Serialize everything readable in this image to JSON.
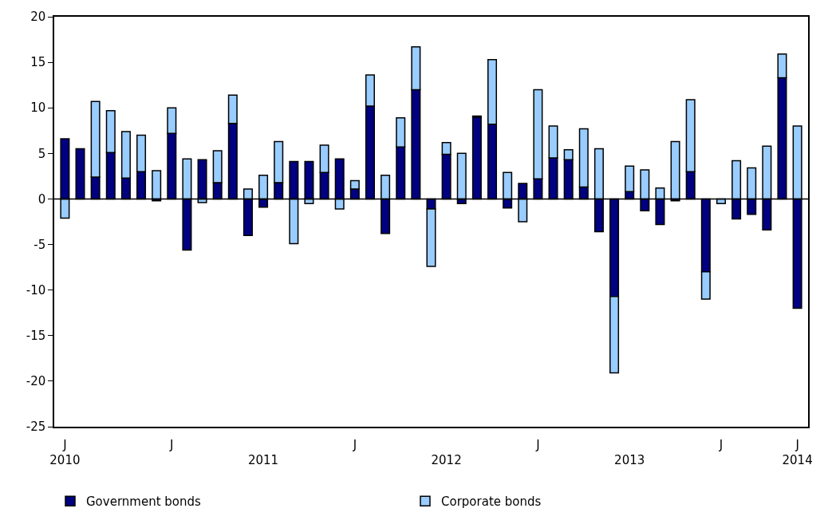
{
  "chart_data": {
    "type": "bar",
    "stacked": true,
    "categories": [
      "J\n2010",
      null,
      null,
      null,
      null,
      null,
      null,
      "J",
      null,
      null,
      null,
      null,
      null,
      "\n2011",
      null,
      null,
      null,
      null,
      null,
      "J",
      null,
      null,
      null,
      null,
      null,
      "\n2012",
      null,
      null,
      null,
      null,
      null,
      "J",
      null,
      null,
      null,
      null,
      null,
      "\n2013",
      null,
      null,
      null,
      null,
      null,
      "J",
      null,
      null,
      null,
      null,
      "J\n2014"
    ],
    "series": [
      {
        "name": "Government bonds",
        "color": "#000080",
        "values": [
          6.6,
          5.5,
          2.4,
          5.1,
          2.3,
          3.0,
          -0.2,
          7.2,
          -5.6,
          4.3,
          1.8,
          8.3,
          -4.0,
          -0.9,
          1.8,
          4.1,
          4.1,
          2.9,
          4.4,
          1.1,
          10.2,
          -3.8,
          5.7,
          12.0,
          -1.1,
          4.9,
          -0.5,
          9.0,
          8.2,
          -1.0,
          1.7,
          2.2,
          4.5,
          4.3,
          1.3,
          -3.6,
          -10.7,
          0.8,
          -1.3,
          -2.8,
          -0.2,
          3.0,
          -8.0,
          null,
          -2.2,
          -1.7,
          -3.4,
          13.3,
          -12.0
        ]
      },
      {
        "name": "Corporate bonds",
        "color": "#99ccff",
        "values": [
          -2.1,
          null,
          8.3,
          4.6,
          5.1,
          4.0,
          3.1,
          2.8,
          4.4,
          -0.4,
          3.5,
          3.1,
          1.1,
          2.6,
          4.5,
          -4.9,
          -0.5,
          3.0,
          -1.1,
          0.9,
          3.4,
          2.6,
          3.2,
          4.7,
          -6.3,
          1.3,
          5.0,
          0.1,
          7.1,
          2.9,
          -2.5,
          9.8,
          3.5,
          1.1,
          6.4,
          5.5,
          -8.4,
          2.8,
          3.2,
          1.2,
          6.3,
          7.9,
          -3.0,
          -0.5,
          4.2,
          3.4,
          5.8,
          2.6,
          8.0
        ]
      }
    ],
    "ylim": [
      -25,
      20
    ],
    "yticks": [
      -25,
      -20,
      -15,
      -10,
      -5,
      0,
      5,
      10,
      15,
      20
    ],
    "grid": false,
    "legend": "bottom",
    "ref_lines": [
      {
        "axis": "y",
        "value": 0,
        "color": "#000000"
      }
    ]
  }
}
